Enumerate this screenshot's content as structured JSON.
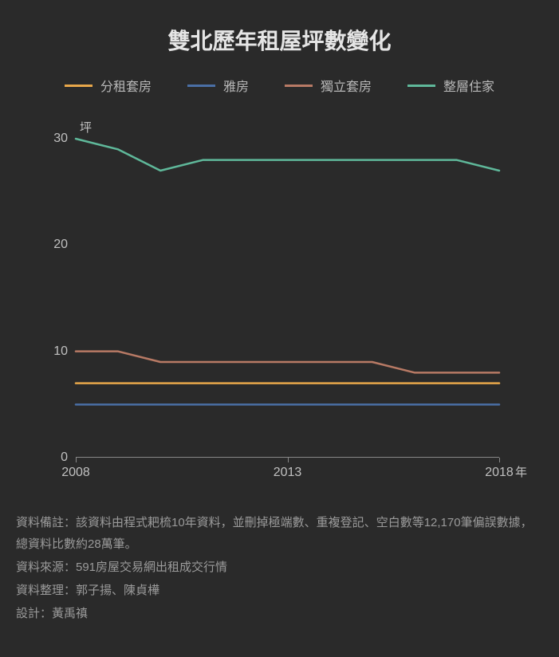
{
  "title": "雙北歷年租屋坪數變化",
  "background_color": "#2a2a2a",
  "chart": {
    "type": "line",
    "y_unit_label": "坪",
    "x_unit_label": "年",
    "ylim": [
      0,
      30
    ],
    "yticks": [
      0,
      10,
      20,
      30
    ],
    "xlim": [
      2008,
      2018
    ],
    "xticks": [
      2008,
      2013,
      2018
    ],
    "axis_color": "#888888",
    "tick_label_color": "#c0c0c0",
    "tick_fontsize": 16,
    "line_width": 2.5,
    "series": [
      {
        "name": "分租套房",
        "color": "#e8a74a",
        "x": [
          2008,
          2009,
          2010,
          2011,
          2012,
          2013,
          2014,
          2015,
          2016,
          2017,
          2018
        ],
        "y": [
          7,
          7,
          7,
          7,
          7,
          7,
          7,
          7,
          7,
          7,
          7
        ]
      },
      {
        "name": "雅房",
        "color": "#4a6fa5",
        "x": [
          2008,
          2009,
          2010,
          2011,
          2012,
          2013,
          2014,
          2015,
          2016,
          2017,
          2018
        ],
        "y": [
          5,
          5,
          5,
          5,
          5,
          5,
          5,
          5,
          5,
          5,
          5
        ]
      },
      {
        "name": "獨立套房",
        "color": "#b87a65",
        "x": [
          2008,
          2009,
          2010,
          2011,
          2012,
          2013,
          2014,
          2015,
          2016,
          2017,
          2018
        ],
        "y": [
          10,
          10,
          9,
          9,
          9,
          9,
          9,
          9,
          8,
          8,
          8
        ]
      },
      {
        "name": "整層住家",
        "color": "#5fb89a",
        "x": [
          2008,
          2009,
          2010,
          2011,
          2012,
          2013,
          2014,
          2015,
          2016,
          2017,
          2018
        ],
        "y": [
          30,
          29,
          27,
          28,
          28,
          28,
          28,
          28,
          28,
          28,
          27
        ]
      }
    ]
  },
  "footer": {
    "note": "資料備註：該資料由程式耙梳10年資料，並刪掉極端數、重複登記、空白數等12,170筆偏誤數據，總資料比數約28萬筆。",
    "source": "資料來源：591房屋交易網出租成交行情",
    "compiled_by": "資料整理：郭子揚、陳貞樺",
    "design_by": "設計：黃禹禛"
  }
}
